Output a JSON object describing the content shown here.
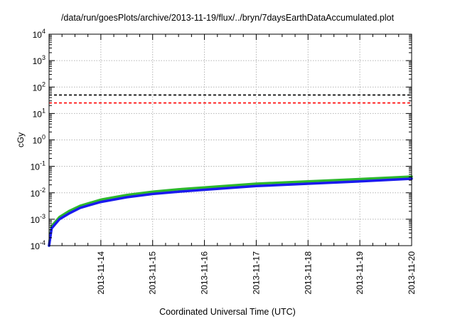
{
  "chart_data": {
    "type": "line",
    "title": "/data/run/goesPlots/archive/2013-11-19/flux/../bryn/7daysEarthDataAccumulated.plot",
    "xlabel": "Coordinated Universal Time (UTC)",
    "ylabel": "cGy",
    "yscale": "log",
    "ylim": [
      0.0001,
      10000
    ],
    "xlim": [
      "2013-11-13",
      "2013-11-20"
    ],
    "x_ticks": [
      "2013-11-14",
      "2013-11-15",
      "2013-11-16",
      "2013-11-17",
      "2013-11-18",
      "2013-11-19",
      "2013-11-20"
    ],
    "y_ticks": [
      {
        "base": "10",
        "exp": "-4",
        "value": 0.0001
      },
      {
        "base": "10",
        "exp": "-3",
        "value": 0.001
      },
      {
        "base": "10",
        "exp": "-2",
        "value": 0.01
      },
      {
        "base": "10",
        "exp": "-1",
        "value": 0.1
      },
      {
        "base": "10",
        "exp": "0",
        "value": 1
      },
      {
        "base": "10",
        "exp": "1",
        "value": 10
      },
      {
        "base": "10",
        "exp": "2",
        "value": 100
      },
      {
        "base": "10",
        "exp": "3",
        "value": 1000
      },
      {
        "base": "10",
        "exp": "4",
        "value": 10000
      }
    ],
    "grid": true,
    "reference_lines": [
      {
        "value": 50,
        "color": "#000000",
        "style": "dashed"
      },
      {
        "value": 25,
        "color": "#ff0000",
        "style": "dashed"
      }
    ],
    "series": [
      {
        "color": "#2db82d",
        "x": [
          "2013-11-13 00:00",
          "2013-11-13 01:12",
          "2013-11-13 04:48",
          "2013-11-13 09:36",
          "2013-11-13 14:24",
          "2013-11-13 19:12",
          "2013-11-14 00:00",
          "2013-11-14 12:00",
          "2013-11-15 00:00",
          "2013-11-15 12:00",
          "2013-11-16 00:00",
          "2013-11-17 00:00",
          "2013-11-18 00:00",
          "2013-11-19 00:00",
          "2013-11-20 00:00"
        ],
        "y": [
          0.0001,
          0.00055,
          0.0012,
          0.0021,
          0.0032,
          0.0042,
          0.0055,
          0.0082,
          0.011,
          0.0135,
          0.016,
          0.022,
          0.027,
          0.033,
          0.041
        ]
      },
      {
        "color": "#1a1aee",
        "x": [
          "2013-11-13 00:00",
          "2013-11-13 01:12",
          "2013-11-13 04:48",
          "2013-11-13 09:36",
          "2013-11-13 14:24",
          "2013-11-13 19:12",
          "2013-11-14 00:00",
          "2013-11-14 12:00",
          "2013-11-15 00:00",
          "2013-11-15 12:00",
          "2013-11-16 00:00",
          "2013-11-17 00:00",
          "2013-11-18 00:00",
          "2013-11-19 00:00",
          "2013-11-20 00:00"
        ],
        "y": [
          0.0001,
          0.00045,
          0.001,
          0.0017,
          0.0027,
          0.0035,
          0.0045,
          0.0068,
          0.009,
          0.011,
          0.013,
          0.018,
          0.022,
          0.027,
          0.034
        ]
      }
    ]
  }
}
